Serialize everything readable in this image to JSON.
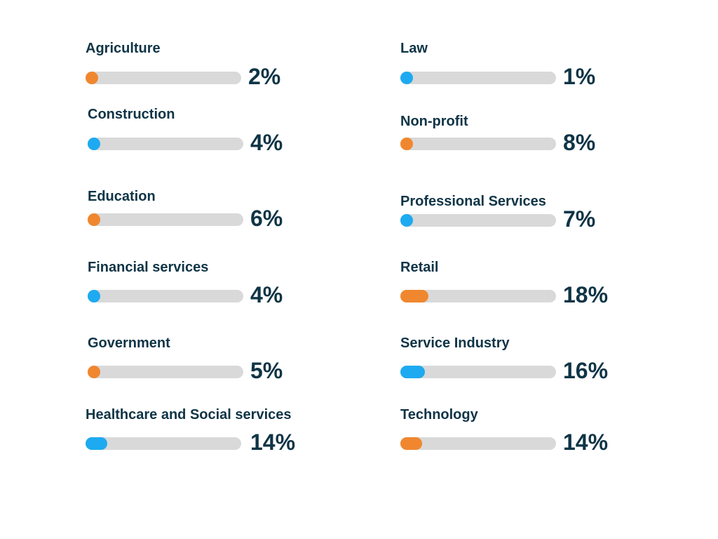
{
  "colors": {
    "orange": "#f0872f",
    "blue": "#1eaaf1",
    "track": "#d9d9d9",
    "text": "#0f3446"
  },
  "chart_data": {
    "type": "bar",
    "orientation": "horizontal",
    "title": "",
    "xlabel": "",
    "ylabel": "",
    "xlim": [
      0,
      100
    ],
    "unit": "%",
    "categories": [
      "Agriculture",
      "Construction",
      "Education",
      "Financial services",
      "Government",
      "Healthcare and Social services",
      "Law",
      "Non-profit",
      "Professional Services",
      "Retail",
      "Service Industry",
      "Technology"
    ],
    "values": [
      2,
      4,
      6,
      4,
      5,
      14,
      1,
      8,
      7,
      18,
      16,
      14
    ],
    "value_labels": [
      "2%",
      "4%",
      "6%",
      "4%",
      "5%",
      "14%",
      "1%",
      "8%",
      "7%",
      "18%",
      "16%",
      "14%"
    ],
    "bar_colors": [
      "orange",
      "blue",
      "orange",
      "blue",
      "orange",
      "blue",
      "blue",
      "orange",
      "blue",
      "orange",
      "blue",
      "orange"
    ]
  }
}
